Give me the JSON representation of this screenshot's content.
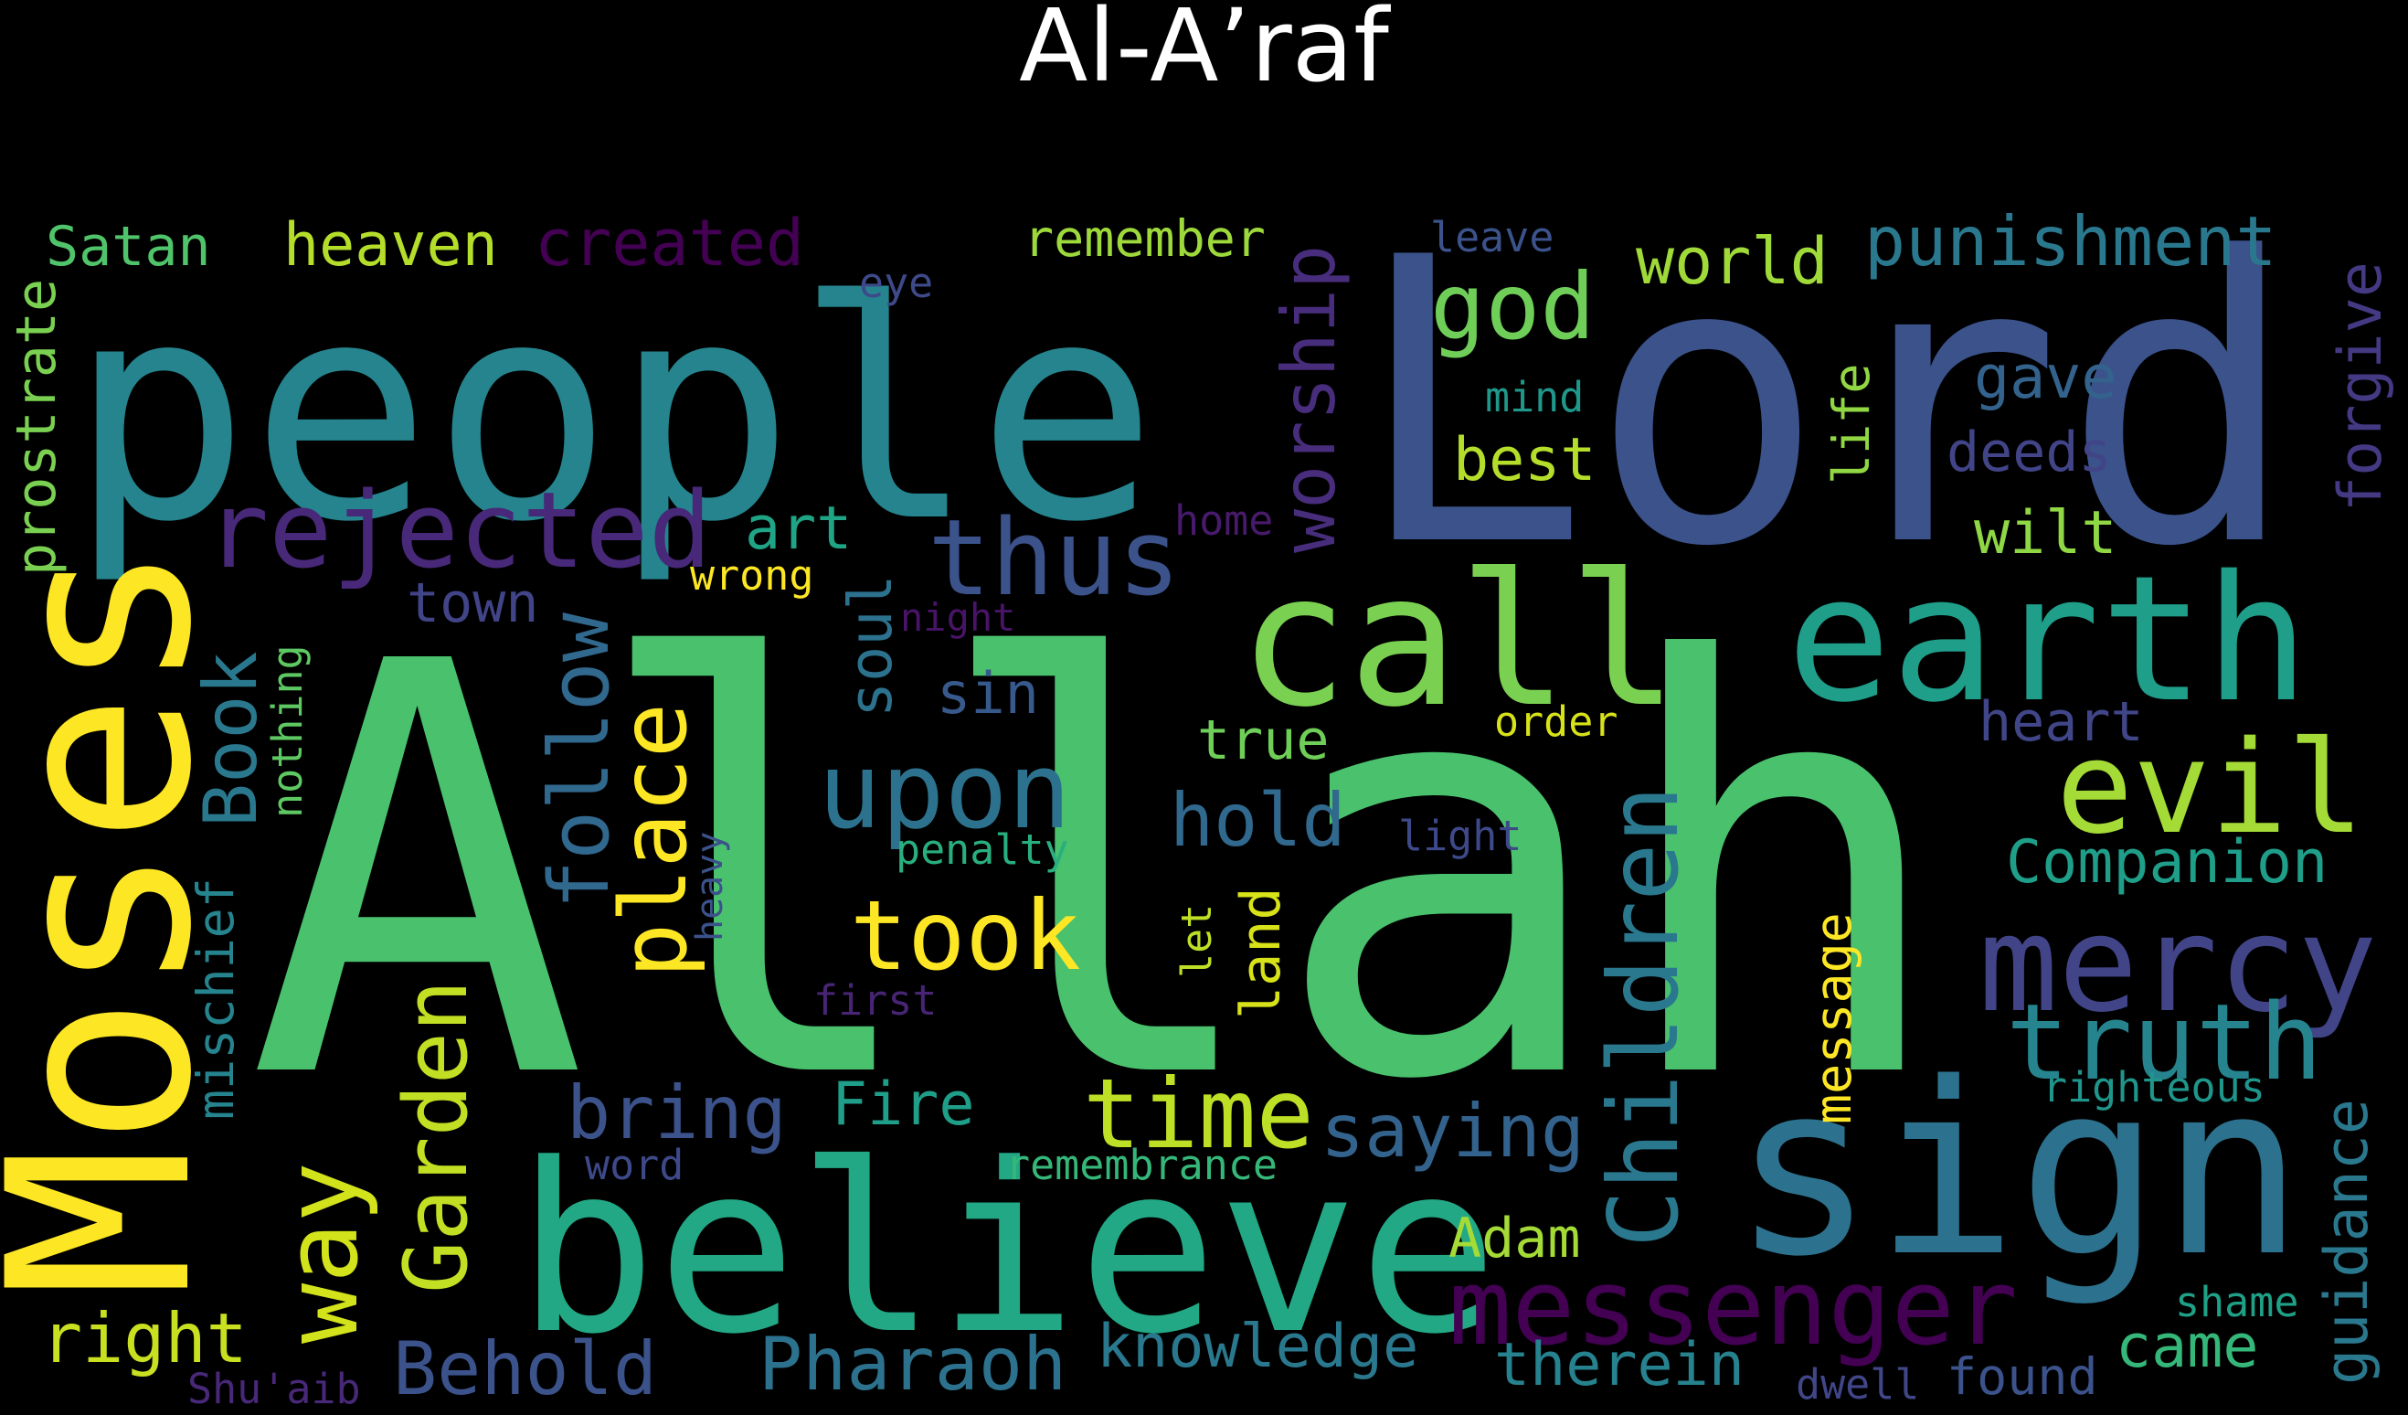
{
  "title": "Al-A’raf",
  "words": [
    {
      "text": "Allah",
      "color": "#4ac16d"
    },
    {
      "text": "people",
      "color": "#25848e"
    },
    {
      "text": "Lord",
      "color": "#3b528b"
    },
    {
      "text": "Moses",
      "color": "#fde725"
    },
    {
      "text": "believe",
      "color": "#22a884"
    },
    {
      "text": "sign",
      "color": "#2c728e"
    },
    {
      "text": "call",
      "color": "#7ad151"
    },
    {
      "text": "earth",
      "color": "#1f9e89"
    },
    {
      "text": "evil",
      "color": "#a5db36"
    },
    {
      "text": "mercy",
      "color": "#414487"
    },
    {
      "text": "truth",
      "color": "#25848e"
    },
    {
      "text": "messenger",
      "color": "#440154"
    },
    {
      "text": "rejected",
      "color": "#482878"
    },
    {
      "text": "thus",
      "color": "#3b528b"
    },
    {
      "text": "upon",
      "color": "#2c728e"
    },
    {
      "text": "took",
      "color": "#fde725"
    },
    {
      "text": "time",
      "color": "#bddf26"
    },
    {
      "text": "way",
      "color": "#d2e21b"
    },
    {
      "text": "Garden",
      "color": "#c2df23"
    },
    {
      "text": "follow",
      "color": "#31688e"
    },
    {
      "text": "place",
      "color": "#fde725"
    },
    {
      "text": "Children",
      "color": "#2a788e"
    },
    {
      "text": "worship",
      "color": "#472d7b"
    },
    {
      "text": "god",
      "color": "#6ece58"
    },
    {
      "text": "world",
      "color": "#a0da39"
    },
    {
      "text": "punishment",
      "color": "#2a788e"
    },
    {
      "text": "gave",
      "color": "#33638d"
    },
    {
      "text": "deeds",
      "color": "#414487"
    },
    {
      "text": "wilt",
      "color": "#8fd744"
    },
    {
      "text": "forgive",
      "color": "#443983"
    },
    {
      "text": "best",
      "color": "#b5de2b"
    },
    {
      "text": "art",
      "color": "#20a486"
    },
    {
      "text": "Satan",
      "color": "#50c46a"
    },
    {
      "text": "heaven",
      "color": "#b5de2b"
    },
    {
      "text": "created",
      "color": "#440154"
    },
    {
      "text": "remember",
      "color": "#9dd93b"
    },
    {
      "text": "eye",
      "color": "#3e4989"
    },
    {
      "text": "leave",
      "color": "#3b528b"
    },
    {
      "text": "mind",
      "color": "#1f988b"
    },
    {
      "text": "life",
      "color": "#90d743"
    },
    {
      "text": "home",
      "color": "#481a6c"
    },
    {
      "text": "prostrate",
      "color": "#7ad151"
    },
    {
      "text": "town",
      "color": "#414487"
    },
    {
      "text": "wrong",
      "color": "#fde725"
    },
    {
      "text": "night",
      "color": "#481467"
    },
    {
      "text": "Book",
      "color": "#2a788e"
    },
    {
      "text": "nothing",
      "color": "#5ec962"
    },
    {
      "text": "soul",
      "color": "#2c728e"
    },
    {
      "text": "sin",
      "color": "#38598c"
    },
    {
      "text": "true",
      "color": "#6ece58"
    },
    {
      "text": "order",
      "color": "#d8e219"
    },
    {
      "text": "heart",
      "color": "#404688"
    },
    {
      "text": "hold",
      "color": "#31688e"
    },
    {
      "text": "Companion",
      "color": "#1f9e89"
    },
    {
      "text": "light",
      "color": "#3e4989"
    },
    {
      "text": "penalty",
      "color": "#29af7f"
    },
    {
      "text": "heavy",
      "color": "#3b528b"
    },
    {
      "text": "mischief",
      "color": "#25848e"
    },
    {
      "text": "land",
      "color": "#d8e219"
    },
    {
      "text": "let",
      "color": "#bddf26"
    },
    {
      "text": "message",
      "color": "#fde725"
    },
    {
      "text": "first",
      "color": "#482475"
    },
    {
      "text": "bring",
      "color": "#3b528b"
    },
    {
      "text": "Fire",
      "color": "#1f9e89"
    },
    {
      "text": "saying",
      "color": "#33638d"
    },
    {
      "text": "righteous",
      "color": "#1f968b"
    },
    {
      "text": "guidance",
      "color": "#2a788e"
    },
    {
      "text": "word",
      "color": "#3e4989"
    },
    {
      "text": "remembrance",
      "color": "#35b779"
    },
    {
      "text": "Adam",
      "color": "#a5db36"
    },
    {
      "text": "right",
      "color": "#c8e020"
    },
    {
      "text": "Behold",
      "color": "#3b528b"
    },
    {
      "text": "Pharaoh",
      "color": "#2c728e"
    },
    {
      "text": "knowledge",
      "color": "#2a788e"
    },
    {
      "text": "therein",
      "color": "#26828e"
    },
    {
      "text": "found",
      "color": "#3b528b"
    },
    {
      "text": "came",
      "color": "#35b779"
    },
    {
      "text": "shame",
      "color": "#1fa187"
    },
    {
      "text": "dwell",
      "color": "#404688"
    },
    {
      "text": "Shu'aib",
      "color": "#482878"
    }
  ]
}
